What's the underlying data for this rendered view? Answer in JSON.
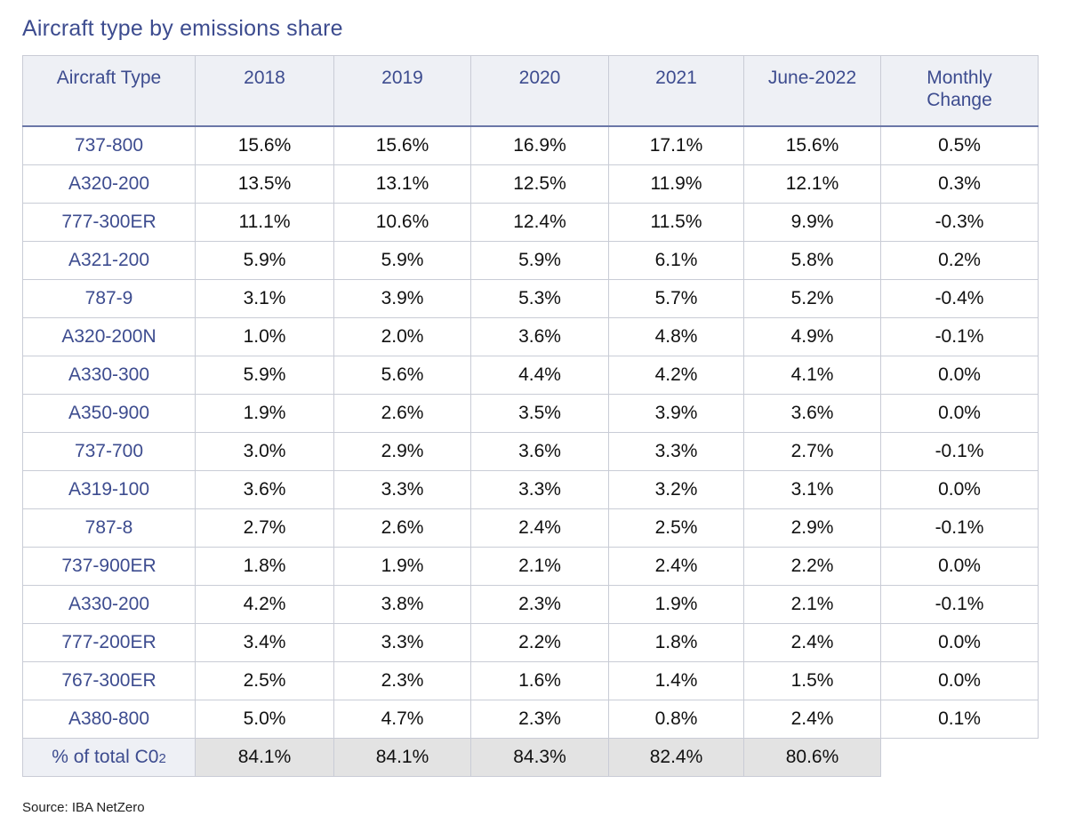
{
  "title": "Aircraft type by emissions share",
  "headers": [
    "Aircraft Type",
    "2018",
    "2019",
    "2020",
    "2021",
    "June-2022",
    "Monthly\nChange"
  ],
  "rows": [
    [
      "737-800",
      "15.6%",
      "15.6%",
      "16.9%",
      "17.1%",
      "15.6%",
      "0.5%"
    ],
    [
      "A320-200",
      "13.5%",
      "13.1%",
      "12.5%",
      "11.9%",
      "12.1%",
      "0.3%"
    ],
    [
      "777-300ER",
      "11.1%",
      "10.6%",
      "12.4%",
      "11.5%",
      "9.9%",
      "-0.3%"
    ],
    [
      "A321-200",
      "5.9%",
      "5.9%",
      "5.9%",
      "6.1%",
      "5.8%",
      "0.2%"
    ],
    [
      "787-9",
      "3.1%",
      "3.9%",
      "5.3%",
      "5.7%",
      "5.2%",
      "-0.4%"
    ],
    [
      "A320-200N",
      "1.0%",
      "2.0%",
      "3.6%",
      "4.8%",
      "4.9%",
      "-0.1%"
    ],
    [
      "A330-300",
      "5.9%",
      "5.6%",
      "4.4%",
      "4.2%",
      "4.1%",
      "0.0%"
    ],
    [
      "A350-900",
      "1.9%",
      "2.6%",
      "3.5%",
      "3.9%",
      "3.6%",
      "0.0%"
    ],
    [
      "737-700",
      "3.0%",
      "2.9%",
      "3.6%",
      "3.3%",
      "2.7%",
      "-0.1%"
    ],
    [
      "A319-100",
      "3.6%",
      "3.3%",
      "3.3%",
      "3.2%",
      "3.1%",
      "0.0%"
    ],
    [
      "787-8",
      "2.7%",
      "2.6%",
      "2.4%",
      "2.5%",
      "2.9%",
      "-0.1%"
    ],
    [
      "737-900ER",
      "1.8%",
      "1.9%",
      "2.1%",
      "2.4%",
      "2.2%",
      "0.0%"
    ],
    [
      "A330-200",
      "4.2%",
      "3.8%",
      "2.3%",
      "1.9%",
      "2.1%",
      "-0.1%"
    ],
    [
      "777-200ER",
      "3.4%",
      "3.3%",
      "2.2%",
      "1.8%",
      "2.4%",
      "0.0%"
    ],
    [
      "767-300ER",
      "2.5%",
      "2.3%",
      "1.6%",
      "1.4%",
      "1.5%",
      "0.0%"
    ],
    [
      "A380-800",
      "5.0%",
      "4.7%",
      "2.3%",
      "0.8%",
      "2.4%",
      "0.1%"
    ]
  ],
  "total": {
    "label_main": "% of total C0",
    "label_sub": "2",
    "values": [
      "84.1%",
      "84.1%",
      "84.3%",
      "82.4%",
      "80.6%"
    ]
  },
  "source": "Source: IBA NetZero",
  "colors": {
    "accent": "#3d4c8f",
    "header_bg": "#eef0f5",
    "total_bg": "#e3e3e3",
    "border": "#c9ccd6"
  }
}
